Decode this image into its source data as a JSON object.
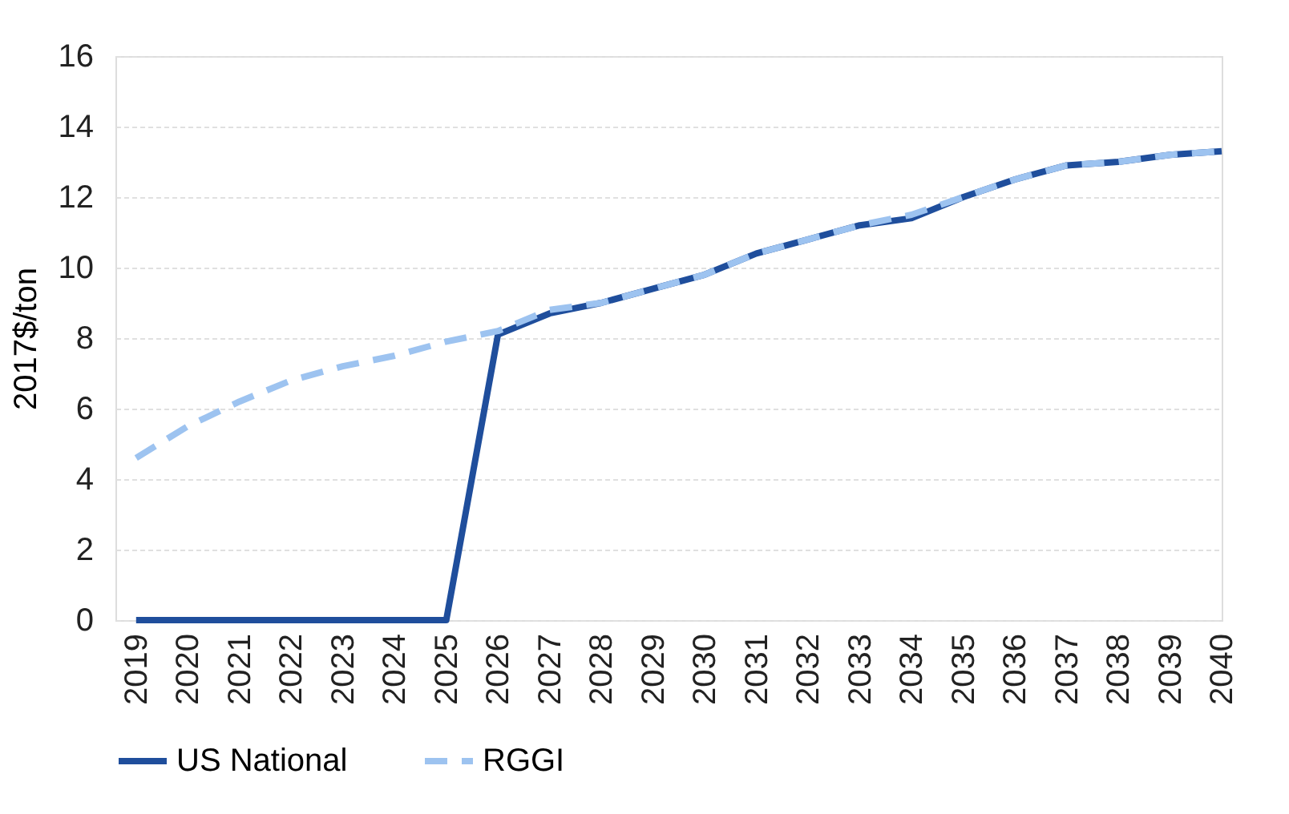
{
  "chart_data": {
    "type": "line",
    "ylabel": "2017$/ton",
    "categories": [
      "2019",
      "2020",
      "2021",
      "2022",
      "2023",
      "2024",
      "2025",
      "2026",
      "2027",
      "2028",
      "2029",
      "2030",
      "2031",
      "2032",
      "2033",
      "2034",
      "2035",
      "2036",
      "2037",
      "2038",
      "2039",
      "2040"
    ],
    "series": [
      {
        "name": "US National",
        "color": "#1f4e9c",
        "line_style": "solid",
        "values": [
          0,
          0,
          0,
          0,
          0,
          0,
          0,
          8.1,
          8.7,
          9.0,
          9.4,
          9.8,
          10.4,
          10.8,
          11.2,
          11.4,
          12.0,
          12.5,
          12.9,
          13.0,
          13.2,
          13.3
        ]
      },
      {
        "name": "RGGI",
        "color": "#9dc3f0",
        "line_style": "dashed",
        "values": [
          4.6,
          5.5,
          6.2,
          6.8,
          7.2,
          7.5,
          7.9,
          8.2,
          8.8,
          9.0,
          9.4,
          9.8,
          10.4,
          10.8,
          11.2,
          11.5,
          12.0,
          12.5,
          12.9,
          13.0,
          13.2,
          13.3
        ]
      }
    ],
    "ylim": [
      0,
      16
    ],
    "yticks": [
      0,
      2,
      4,
      6,
      8,
      10,
      12,
      14,
      16
    ],
    "grid": "y",
    "legend": "bottom",
    "marker": "none"
  }
}
